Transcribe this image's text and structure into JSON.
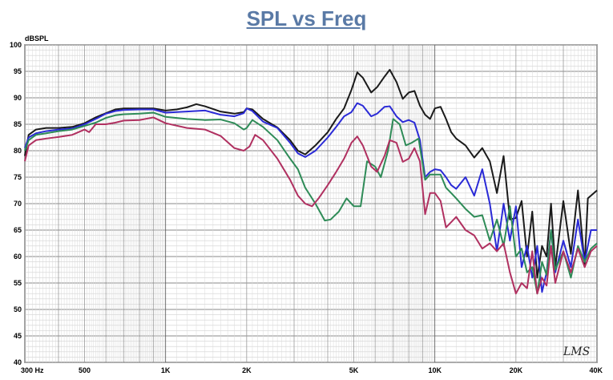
{
  "chart_data": {
    "type": "line",
    "title": "SPL vs Freq",
    "ylabel": "dBSPL",
    "xlabel": "",
    "x_scale": "log",
    "xlim": [
      300,
      40000
    ],
    "ylim": [
      40,
      100
    ],
    "grid": true,
    "legend": "none",
    "yticks": [
      40,
      45,
      50,
      55,
      60,
      65,
      70,
      75,
      80,
      85,
      90,
      95,
      100
    ],
    "xtick_labels": [
      {
        "value": 300,
        "label": "300  Hz"
      },
      {
        "value": 500,
        "label": "500"
      },
      {
        "value": 1000,
        "label": "1K"
      },
      {
        "value": 2000,
        "label": "2K"
      },
      {
        "value": 5000,
        "label": "5K"
      },
      {
        "value": 10000,
        "label": "10K"
      },
      {
        "value": 20000,
        "label": "20K"
      },
      {
        "value": 40000,
        "label": "40K"
      }
    ],
    "watermark": "LMS",
    "series": [
      {
        "color": "#1a1a1a",
        "points": [
          [
            300,
            79
          ],
          [
            310,
            83
          ],
          [
            330,
            84
          ],
          [
            360,
            84.3
          ],
          [
            400,
            84.3
          ],
          [
            450,
            84.5
          ],
          [
            500,
            85.2
          ],
          [
            550,
            86.3
          ],
          [
            600,
            87.1
          ],
          [
            650,
            87.8
          ],
          [
            700,
            88
          ],
          [
            800,
            88
          ],
          [
            900,
            88
          ],
          [
            1000,
            87.6
          ],
          [
            1100,
            87.8
          ],
          [
            1200,
            88.2
          ],
          [
            1300,
            88.8
          ],
          [
            1400,
            88.4
          ],
          [
            1600,
            87.4
          ],
          [
            1800,
            87
          ],
          [
            1950,
            87.3
          ],
          [
            2000,
            88
          ],
          [
            2100,
            87.8
          ],
          [
            2300,
            86
          ],
          [
            2600,
            84.4
          ],
          [
            2900,
            82
          ],
          [
            3100,
            80
          ],
          [
            3300,
            79.3
          ],
          [
            3600,
            81
          ],
          [
            4000,
            83.5
          ],
          [
            4300,
            86
          ],
          [
            4600,
            88
          ],
          [
            4900,
            91.5
          ],
          [
            5150,
            94.8
          ],
          [
            5400,
            93.8
          ],
          [
            5800,
            91
          ],
          [
            6100,
            92
          ],
          [
            6500,
            94
          ],
          [
            6800,
            95.3
          ],
          [
            7200,
            93
          ],
          [
            7600,
            89.8
          ],
          [
            8000,
            91
          ],
          [
            8400,
            91.3
          ],
          [
            8800,
            88.5
          ],
          [
            9200,
            86.8
          ],
          [
            9600,
            86
          ],
          [
            10000,
            88
          ],
          [
            10500,
            88.3
          ],
          [
            11000,
            86
          ],
          [
            11500,
            83.5
          ],
          [
            12000,
            82.3
          ],
          [
            13000,
            81
          ],
          [
            14000,
            78.7
          ],
          [
            15000,
            80.5
          ],
          [
            16000,
            78
          ],
          [
            17000,
            72
          ],
          [
            18000,
            79
          ],
          [
            19000,
            67
          ],
          [
            20000,
            67.3
          ],
          [
            21000,
            70.5
          ],
          [
            22000,
            60
          ],
          [
            23000,
            68.5
          ],
          [
            24000,
            56
          ],
          [
            25000,
            62
          ],
          [
            26000,
            60
          ],
          [
            27000,
            70
          ],
          [
            28000,
            58
          ],
          [
            30000,
            70.5
          ],
          [
            32000,
            60.5
          ],
          [
            34000,
            72.5
          ],
          [
            36000,
            58.5
          ],
          [
            37000,
            71
          ],
          [
            40000,
            72.5
          ]
        ]
      },
      {
        "color": "#2a2ad6",
        "points": [
          [
            300,
            80.5
          ],
          [
            310,
            82.5
          ],
          [
            330,
            83.3
          ],
          [
            360,
            83.7
          ],
          [
            400,
            84
          ],
          [
            450,
            84.2
          ],
          [
            500,
            85
          ],
          [
            550,
            86
          ],
          [
            600,
            87
          ],
          [
            650,
            87.5
          ],
          [
            700,
            87.7
          ],
          [
            800,
            87.8
          ],
          [
            900,
            87.8
          ],
          [
            1000,
            87.2
          ],
          [
            1200,
            87.4
          ],
          [
            1400,
            87.6
          ],
          [
            1600,
            86.8
          ],
          [
            1800,
            86.5
          ],
          [
            1950,
            87.1
          ],
          [
            2000,
            88
          ],
          [
            2100,
            87.5
          ],
          [
            2300,
            85.5
          ],
          [
            2600,
            84.3
          ],
          [
            2900,
            81.5
          ],
          [
            3100,
            79.5
          ],
          [
            3300,
            78.8
          ],
          [
            3600,
            80
          ],
          [
            4000,
            82.5
          ],
          [
            4300,
            84.5
          ],
          [
            4600,
            86.5
          ],
          [
            4900,
            87.3
          ],
          [
            5150,
            89
          ],
          [
            5400,
            88.5
          ],
          [
            5800,
            86.5
          ],
          [
            6100,
            87
          ],
          [
            6500,
            88.3
          ],
          [
            6800,
            88.4
          ],
          [
            7200,
            86.5
          ],
          [
            7600,
            85.4
          ],
          [
            8000,
            85.8
          ],
          [
            8400,
            85.3
          ],
          [
            8800,
            82
          ],
          [
            9200,
            75
          ],
          [
            9600,
            76
          ],
          [
            10000,
            76.5
          ],
          [
            10500,
            76.3
          ],
          [
            11000,
            75
          ],
          [
            11500,
            73.5
          ],
          [
            12000,
            72.8
          ],
          [
            13000,
            75
          ],
          [
            14000,
            71.5
          ],
          [
            15000,
            76.5
          ],
          [
            16000,
            70
          ],
          [
            17000,
            61
          ],
          [
            18000,
            70
          ],
          [
            19000,
            63
          ],
          [
            20000,
            69.5
          ],
          [
            21000,
            58
          ],
          [
            22000,
            62
          ],
          [
            23000,
            56
          ],
          [
            24000,
            62
          ],
          [
            25000,
            53.3
          ],
          [
            26000,
            57
          ],
          [
            27000,
            65
          ],
          [
            28000,
            57
          ],
          [
            30000,
            63
          ],
          [
            32000,
            58
          ],
          [
            34000,
            67
          ],
          [
            36000,
            59
          ],
          [
            38000,
            65
          ],
          [
            40000,
            65
          ]
        ]
      },
      {
        "color": "#2e8b57",
        "points": [
          [
            300,
            80
          ],
          [
            310,
            82
          ],
          [
            330,
            83
          ],
          [
            360,
            83.3
          ],
          [
            400,
            83.7
          ],
          [
            450,
            84
          ],
          [
            500,
            84.7
          ],
          [
            550,
            85.3
          ],
          [
            600,
            86.2
          ],
          [
            650,
            86.7
          ],
          [
            700,
            86.9
          ],
          [
            800,
            87
          ],
          [
            900,
            87.2
          ],
          [
            1000,
            86.4
          ],
          [
            1200,
            86
          ],
          [
            1400,
            85.8
          ],
          [
            1600,
            85.9
          ],
          [
            1800,
            85.2
          ],
          [
            1950,
            84
          ],
          [
            2000,
            84.3
          ],
          [
            2100,
            85.8
          ],
          [
            2300,
            84.5
          ],
          [
            2600,
            82
          ],
          [
            2900,
            78.5
          ],
          [
            3100,
            76.5
          ],
          [
            3300,
            73
          ],
          [
            3600,
            70
          ],
          [
            3900,
            66.8
          ],
          [
            4100,
            67
          ],
          [
            4400,
            68.5
          ],
          [
            4700,
            71
          ],
          [
            5000,
            69.5
          ],
          [
            5300,
            69.5
          ],
          [
            5600,
            78
          ],
          [
            6000,
            77
          ],
          [
            6300,
            75
          ],
          [
            6700,
            80
          ],
          [
            7000,
            86
          ],
          [
            7400,
            85
          ],
          [
            7800,
            81
          ],
          [
            8200,
            81.5
          ],
          [
            8700,
            82.3
          ],
          [
            9200,
            74.5
          ],
          [
            9600,
            75.5
          ],
          [
            10000,
            75.5
          ],
          [
            10500,
            75.5
          ],
          [
            11000,
            73
          ],
          [
            11500,
            72
          ],
          [
            12000,
            71
          ],
          [
            13000,
            69
          ],
          [
            14000,
            67.5
          ],
          [
            15000,
            67.8
          ],
          [
            16000,
            63
          ],
          [
            17000,
            67
          ],
          [
            18000,
            62
          ],
          [
            19000,
            69.5
          ],
          [
            20000,
            60
          ],
          [
            21000,
            61.5
          ],
          [
            22000,
            57
          ],
          [
            23000,
            58
          ],
          [
            24000,
            53
          ],
          [
            25000,
            59
          ],
          [
            26000,
            56.5
          ],
          [
            27000,
            65
          ],
          [
            28000,
            57.5
          ],
          [
            30000,
            61
          ],
          [
            32000,
            56
          ],
          [
            34000,
            62
          ],
          [
            36000,
            59
          ],
          [
            38000,
            61.5
          ],
          [
            40000,
            62.5
          ]
        ]
      },
      {
        "color": "#b03060",
        "points": [
          [
            300,
            78
          ],
          [
            310,
            81
          ],
          [
            330,
            82
          ],
          [
            360,
            82.3
          ],
          [
            400,
            82.6
          ],
          [
            450,
            83
          ],
          [
            500,
            84
          ],
          [
            520,
            83.5
          ],
          [
            550,
            85
          ],
          [
            600,
            85
          ],
          [
            650,
            85.3
          ],
          [
            700,
            85.7
          ],
          [
            800,
            85.8
          ],
          [
            900,
            86.3
          ],
          [
            1000,
            85.2
          ],
          [
            1200,
            84.3
          ],
          [
            1400,
            84
          ],
          [
            1600,
            82.8
          ],
          [
            1800,
            80.5
          ],
          [
            1950,
            80
          ],
          [
            2050,
            80.8
          ],
          [
            2150,
            83
          ],
          [
            2300,
            82
          ],
          [
            2600,
            78.5
          ],
          [
            2900,
            74.5
          ],
          [
            3100,
            71.5
          ],
          [
            3300,
            70
          ],
          [
            3500,
            69.5
          ],
          [
            3700,
            71
          ],
          [
            4000,
            73.5
          ],
          [
            4300,
            76
          ],
          [
            4600,
            78.5
          ],
          [
            4900,
            81.5
          ],
          [
            5150,
            82.7
          ],
          [
            5400,
            81
          ],
          [
            5800,
            77
          ],
          [
            6100,
            76
          ],
          [
            6500,
            79
          ],
          [
            6800,
            82
          ],
          [
            7200,
            81.5
          ],
          [
            7600,
            77.9
          ],
          [
            8000,
            78.5
          ],
          [
            8400,
            80.5
          ],
          [
            8800,
            78
          ],
          [
            9200,
            68
          ],
          [
            9600,
            72
          ],
          [
            10000,
            72
          ],
          [
            10500,
            70.5
          ],
          [
            11000,
            65.5
          ],
          [
            11500,
            66.5
          ],
          [
            12000,
            67.5
          ],
          [
            13000,
            65
          ],
          [
            14000,
            64
          ],
          [
            15000,
            61.5
          ],
          [
            16000,
            62.5
          ],
          [
            17000,
            61
          ],
          [
            18000,
            62.5
          ],
          [
            19000,
            57
          ],
          [
            20000,
            53
          ],
          [
            21000,
            55
          ],
          [
            22000,
            54
          ],
          [
            23000,
            61
          ],
          [
            24000,
            53
          ],
          [
            25000,
            56
          ],
          [
            26000,
            54.5
          ],
          [
            27000,
            62
          ],
          [
            28000,
            55
          ],
          [
            30000,
            61
          ],
          [
            32000,
            57
          ],
          [
            34000,
            61.5
          ],
          [
            36000,
            58
          ],
          [
            38000,
            61
          ],
          [
            40000,
            62
          ]
        ]
      }
    ]
  }
}
